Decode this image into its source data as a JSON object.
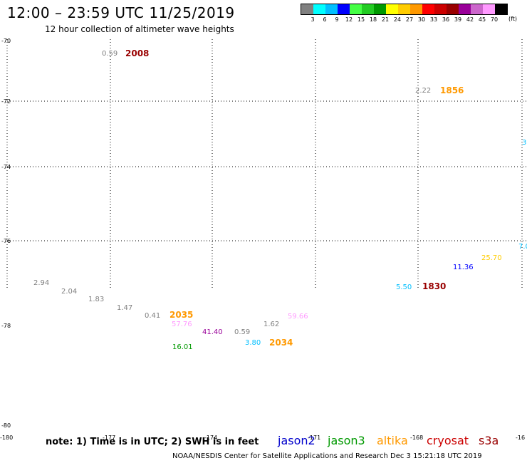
{
  "header": {
    "title": "12:00 – 23:59 UTC 11/25/2019",
    "subtitle": "12 hour collection of altimeter wave heights"
  },
  "legend": {
    "colors": [
      "#808080",
      "#00ffff",
      "#00bfff",
      "#0000ff",
      "#44ff44",
      "#22cc22",
      "#009900",
      "#ffff00",
      "#ffcc00",
      "#ff9900",
      "#ff0000",
      "#cc0000",
      "#990000",
      "#990099",
      "#cc66cc",
      "#ff99ff",
      "#000000"
    ],
    "labels": [
      "3",
      "6",
      "9",
      "12",
      "15",
      "18",
      "21",
      "24",
      "27",
      "30",
      "33",
      "36",
      "39",
      "42",
      "45",
      "70"
    ],
    "unit": "(ft)"
  },
  "axes": {
    "lat_ticks": [
      "-70",
      "-72",
      "-74",
      "-76",
      "-78",
      "-80"
    ],
    "lon_ticks": [
      "-180",
      "-177",
      "-174",
      "-171",
      "-168",
      "-16"
    ]
  },
  "observations": [
    {
      "text": "0.59",
      "color": "#808080"
    },
    {
      "text": "2008",
      "color": "#990000"
    },
    {
      "text": "2.22",
      "color": "#808080"
    },
    {
      "text": "1856",
      "color": "#ff9900"
    },
    {
      "text": "3",
      "color": "#00bfff"
    },
    {
      "text": "7.0",
      "color": "#00bfff"
    },
    {
      "text": "25.70",
      "color": "#ffcc00"
    },
    {
      "text": "11.36",
      "color": "#0000ff"
    },
    {
      "text": "5.50",
      "color": "#00bfff"
    },
    {
      "text": "1830",
      "color": "#990000"
    },
    {
      "text": "2.94",
      "color": "#808080"
    },
    {
      "text": "2.04",
      "color": "#808080"
    },
    {
      "text": "1.83",
      "color": "#808080"
    },
    {
      "text": "1.47",
      "color": "#808080"
    },
    {
      "text": "0.41",
      "color": "#808080"
    },
    {
      "text": "2035",
      "color": "#ff9900"
    },
    {
      "text": "57.76",
      "color": "#ff99ff"
    },
    {
      "text": "41.40",
      "color": "#990099"
    },
    {
      "text": "0.59",
      "color": "#808080"
    },
    {
      "text": "1.62",
      "color": "#808080"
    },
    {
      "text": "59.66",
      "color": "#ff99ff"
    },
    {
      "text": "16.01",
      "color": "#009900"
    },
    {
      "text": "3.80",
      "color": "#00bfff"
    },
    {
      "text": "2034",
      "color": "#ff9900"
    }
  ],
  "note": "note: 1) Time is in UTC; 2) SWH is in feet",
  "satellites": [
    {
      "name": "jason2",
      "color": "#0000cc"
    },
    {
      "name": "jason3",
      "color": "#009900"
    },
    {
      "name": "altika",
      "color": "#ff9900"
    },
    {
      "name": "cryosat",
      "color": "#cc0000"
    },
    {
      "name": "s3a",
      "color": "#990000"
    }
  ],
  "footer": "NOAA/NESDIS Center for Satellite Applications and Research    Dec  3 15:21:18 UTC 2019"
}
